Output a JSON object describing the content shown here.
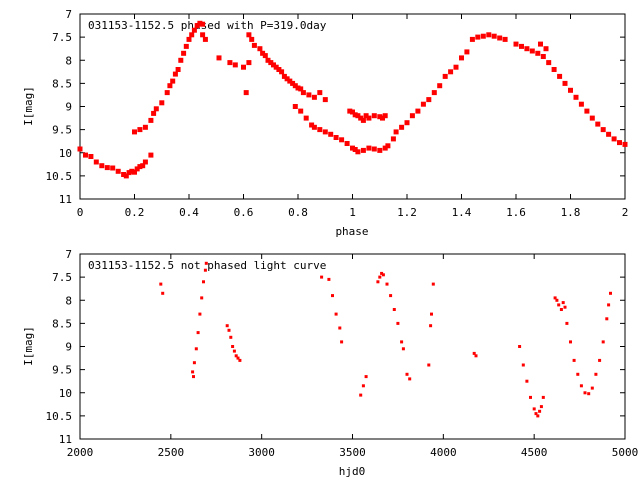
{
  "chart_data": [
    {
      "type": "scatter",
      "title": "031153-1152.5 phased with P=319.0day",
      "xlabel": "phase",
      "ylabel": "I[mag]",
      "xlim": [
        0,
        2
      ],
      "ylim": [
        11,
        7
      ],
      "y_inverted": true,
      "grid": false,
      "marker_color": "#ff0000",
      "x_ticks": [
        "0",
        "0.2",
        "0.4",
        "0.6",
        "0.8",
        "1",
        "1.2",
        "1.4",
        "1.6",
        "1.8",
        "2"
      ],
      "y_ticks": [
        "7",
        "7.5",
        "8",
        "8.5",
        "9",
        "9.5",
        "10",
        "10.5",
        "11"
      ],
      "series": [
        {
          "points": [
            [
              0.0,
              9.92
            ],
            [
              0.02,
              10.05
            ],
            [
              0.04,
              10.08
            ],
            [
              0.06,
              10.2
            ],
            [
              0.08,
              10.28
            ],
            [
              0.1,
              10.32
            ],
            [
              0.12,
              10.33
            ],
            [
              0.14,
              10.4
            ],
            [
              0.16,
              10.47
            ],
            [
              0.17,
              10.5
            ],
            [
              0.18,
              10.43
            ],
            [
              0.19,
              10.4
            ],
            [
              0.2,
              10.42
            ],
            [
              0.21,
              10.35
            ],
            [
              0.22,
              10.3
            ],
            [
              0.23,
              10.28
            ],
            [
              0.24,
              10.2
            ],
            [
              0.26,
              10.05
            ],
            [
              0.2,
              9.55
            ],
            [
              0.22,
              9.5
            ],
            [
              0.24,
              9.45
            ],
            [
              0.26,
              9.3
            ],
            [
              0.27,
              9.15
            ],
            [
              0.28,
              9.05
            ],
            [
              0.3,
              8.92
            ],
            [
              0.32,
              8.7
            ],
            [
              0.33,
              8.55
            ],
            [
              0.34,
              8.45
            ],
            [
              0.35,
              8.3
            ],
            [
              0.36,
              8.2
            ],
            [
              0.37,
              8.0
            ],
            [
              0.38,
              7.85
            ],
            [
              0.39,
              7.7
            ],
            [
              0.4,
              7.55
            ],
            [
              0.41,
              7.45
            ],
            [
              0.42,
              7.35
            ],
            [
              0.43,
              7.25
            ],
            [
              0.44,
              7.2
            ],
            [
              0.45,
              7.22
            ],
            [
              0.45,
              7.45
            ],
            [
              0.46,
              7.55
            ],
            [
              0.51,
              7.95
            ],
            [
              0.55,
              8.05
            ],
            [
              0.57,
              8.1
            ],
            [
              0.6,
              8.15
            ],
            [
              0.62,
              8.05
            ],
            [
              0.61,
              8.7
            ],
            [
              0.62,
              7.45
            ],
            [
              0.63,
              7.55
            ],
            [
              0.64,
              7.68
            ],
            [
              0.66,
              7.75
            ],
            [
              0.67,
              7.85
            ],
            [
              0.68,
              7.9
            ],
            [
              0.69,
              8.0
            ],
            [
              0.7,
              8.05
            ],
            [
              0.71,
              8.1
            ],
            [
              0.72,
              8.15
            ],
            [
              0.73,
              8.2
            ],
            [
              0.74,
              8.25
            ],
            [
              0.75,
              8.35
            ],
            [
              0.76,
              8.4
            ],
            [
              0.77,
              8.45
            ],
            [
              0.78,
              8.5
            ],
            [
              0.79,
              8.55
            ],
            [
              0.8,
              8.6
            ],
            [
              0.81,
              8.62
            ],
            [
              0.82,
              8.7
            ],
            [
              0.84,
              8.75
            ],
            [
              0.86,
              8.8
            ],
            [
              0.88,
              8.7
            ],
            [
              0.9,
              8.85
            ],
            [
              0.79,
              9.0
            ],
            [
              0.81,
              9.1
            ],
            [
              0.83,
              9.25
            ],
            [
              0.85,
              9.4
            ],
            [
              0.86,
              9.45
            ],
            [
              0.88,
              9.5
            ],
            [
              0.9,
              9.55
            ],
            [
              0.92,
              9.6
            ],
            [
              0.94,
              9.67
            ],
            [
              0.96,
              9.72
            ],
            [
              0.98,
              9.8
            ],
            [
              1.0,
              9.9
            ],
            [
              1.01,
              9.93
            ],
            [
              1.02,
              9.98
            ],
            [
              1.04,
              9.95
            ],
            [
              1.06,
              9.9
            ],
            [
              1.08,
              9.92
            ],
            [
              1.1,
              9.95
            ],
            [
              1.12,
              9.9
            ],
            [
              0.99,
              9.1
            ],
            [
              1.0,
              9.12
            ],
            [
              1.01,
              9.18
            ],
            [
              1.02,
              9.2
            ],
            [
              1.03,
              9.25
            ],
            [
              1.04,
              9.3
            ],
            [
              1.05,
              9.2
            ],
            [
              1.06,
              9.25
            ],
            [
              1.08,
              9.2
            ],
            [
              1.1,
              9.22
            ],
            [
              1.11,
              9.25
            ],
            [
              1.12,
              9.2
            ],
            [
              1.13,
              9.85
            ],
            [
              1.15,
              9.7
            ],
            [
              1.16,
              9.55
            ],
            [
              1.18,
              9.45
            ],
            [
              1.2,
              9.35
            ],
            [
              1.22,
              9.2
            ],
            [
              1.24,
              9.1
            ],
            [
              1.26,
              8.95
            ],
            [
              1.28,
              8.85
            ],
            [
              1.3,
              8.7
            ],
            [
              1.32,
              8.55
            ],
            [
              1.34,
              8.35
            ],
            [
              1.36,
              8.25
            ],
            [
              1.38,
              8.15
            ],
            [
              1.4,
              7.95
            ],
            [
              1.42,
              7.82
            ],
            [
              1.44,
              7.55
            ],
            [
              1.46,
              7.5
            ],
            [
              1.48,
              7.48
            ],
            [
              1.5,
              7.45
            ],
            [
              1.52,
              7.48
            ],
            [
              1.54,
              7.52
            ],
            [
              1.56,
              7.55
            ],
            [
              1.6,
              7.65
            ],
            [
              1.62,
              7.7
            ],
            [
              1.64,
              7.75
            ],
            [
              1.66,
              7.8
            ],
            [
              1.68,
              7.85
            ],
            [
              1.69,
              7.65
            ],
            [
              1.71,
              7.75
            ],
            [
              1.7,
              7.92
            ],
            [
              1.72,
              8.05
            ],
            [
              1.74,
              8.2
            ],
            [
              1.76,
              8.35
            ],
            [
              1.78,
              8.5
            ],
            [
              1.8,
              8.65
            ],
            [
              1.82,
              8.8
            ],
            [
              1.84,
              8.95
            ],
            [
              1.86,
              9.1
            ],
            [
              1.88,
              9.25
            ],
            [
              1.9,
              9.38
            ],
            [
              1.92,
              9.5
            ],
            [
              1.94,
              9.6
            ],
            [
              1.96,
              9.7
            ],
            [
              1.98,
              9.78
            ],
            [
              2.0,
              9.82
            ]
          ]
        }
      ]
    },
    {
      "type": "scatter",
      "title": "031153-1152.5 not phased light curve",
      "xlabel": "hjd0",
      "ylabel": "I[mag]",
      "xlim": [
        2000,
        5000
      ],
      "ylim": [
        11,
        7
      ],
      "y_inverted": true,
      "grid": false,
      "marker_color": "#ff0000",
      "x_ticks": [
        "2000",
        "2500",
        "3000",
        "3500",
        "4000",
        "4500",
        "5000"
      ],
      "y_ticks": [
        "7",
        "7.5",
        "8",
        "8.5",
        "9",
        "9.5",
        "10",
        "10.5",
        "11"
      ],
      "series": [
        {
          "points": [
            [
              2445,
              7.65
            ],
            [
              2455,
              7.85
            ],
            [
              2620,
              9.55
            ],
            [
              2625,
              9.65
            ],
            [
              2630,
              9.35
            ],
            [
              2640,
              9.05
            ],
            [
              2650,
              8.7
            ],
            [
              2660,
              8.3
            ],
            [
              2670,
              7.95
            ],
            [
              2680,
              7.6
            ],
            [
              2690,
              7.35
            ],
            [
              2695,
              7.2
            ],
            [
              2810,
              8.55
            ],
            [
              2820,
              8.65
            ],
            [
              2830,
              8.8
            ],
            [
              2840,
              9.0
            ],
            [
              2850,
              9.1
            ],
            [
              2860,
              9.2
            ],
            [
              2870,
              9.25
            ],
            [
              2880,
              9.3
            ],
            [
              3330,
              7.5
            ],
            [
              3370,
              7.55
            ],
            [
              3390,
              7.9
            ],
            [
              3410,
              8.3
            ],
            [
              3430,
              8.6
            ],
            [
              3440,
              8.9
            ],
            [
              3545,
              10.05
            ],
            [
              3560,
              9.85
            ],
            [
              3575,
              9.65
            ],
            [
              3640,
              7.6
            ],
            [
              3650,
              7.5
            ],
            [
              3660,
              7.42
            ],
            [
              3670,
              7.45
            ],
            [
              3690,
              7.65
            ],
            [
              3710,
              7.9
            ],
            [
              3730,
              8.2
            ],
            [
              3750,
              8.5
            ],
            [
              3770,
              8.9
            ],
            [
              3780,
              9.05
            ],
            [
              3800,
              9.6
            ],
            [
              3815,
              9.7
            ],
            [
              3920,
              9.4
            ],
            [
              3930,
              8.55
            ],
            [
              3935,
              8.3
            ],
            [
              3945,
              7.65
            ],
            [
              4170,
              9.15
            ],
            [
              4180,
              9.2
            ],
            [
              4420,
              9.0
            ],
            [
              4440,
              9.4
            ],
            [
              4460,
              9.75
            ],
            [
              4480,
              10.1
            ],
            [
              4500,
              10.35
            ],
            [
              4510,
              10.45
            ],
            [
              4520,
              10.5
            ],
            [
              4530,
              10.4
            ],
            [
              4540,
              10.3
            ],
            [
              4550,
              10.1
            ],
            [
              4615,
              7.95
            ],
            [
              4625,
              8.0
            ],
            [
              4635,
              8.1
            ],
            [
              4650,
              8.2
            ],
            [
              4660,
              8.05
            ],
            [
              4670,
              8.15
            ],
            [
              4680,
              8.5
            ],
            [
              4700,
              8.9
            ],
            [
              4720,
              9.3
            ],
            [
              4740,
              9.6
            ],
            [
              4760,
              9.85
            ],
            [
              4780,
              10.0
            ],
            [
              4800,
              10.02
            ],
            [
              4820,
              9.9
            ],
            [
              4840,
              9.6
            ],
            [
              4860,
              9.3
            ],
            [
              4880,
              8.9
            ],
            [
              4900,
              8.4
            ],
            [
              4910,
              8.1
            ],
            [
              4920,
              7.85
            ]
          ]
        }
      ]
    }
  ]
}
